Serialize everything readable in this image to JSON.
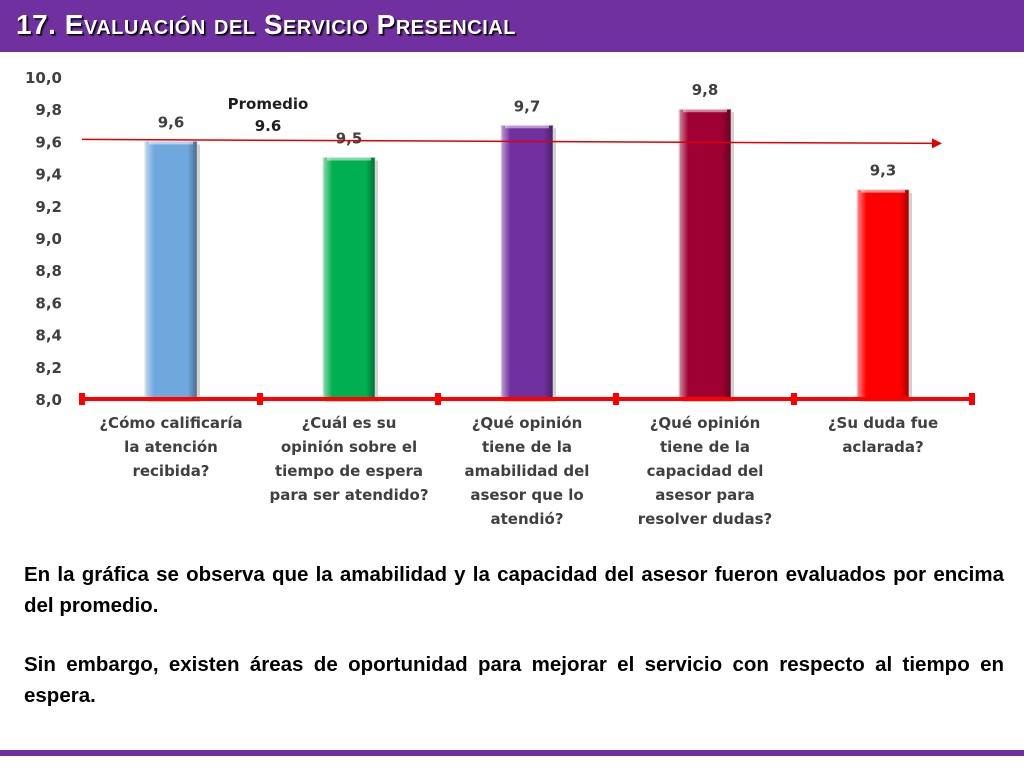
{
  "header": {
    "title": "17. Evaluación del Servicio Presencial"
  },
  "chart_data": {
    "type": "bar",
    "categories": [
      [
        "¿Cómo calificaría",
        "la atención",
        "recibida?"
      ],
      [
        "¿Cuál es su",
        "opinión sobre el",
        "tiempo de espera",
        "para ser atendido?"
      ],
      [
        "¿Qué opinión",
        "tiene de la",
        "amabilidad del",
        "asesor que lo",
        "atendió?"
      ],
      [
        "¿Qué opinión",
        "tiene de la",
        "capacidad del",
        "asesor para",
        "resolver dudas?"
      ],
      [
        "¿Su duda fue",
        "aclarada?"
      ]
    ],
    "values": [
      9.6,
      9.5,
      9.7,
      9.8,
      9.3
    ],
    "value_labels": [
      "9,6",
      "9,5",
      "9,7",
      "9,8",
      "9,3"
    ],
    "colors": [
      "#6fa8dc",
      "#00b050",
      "#7030a0",
      "#9e0033",
      "#ff0000"
    ],
    "ylim": [
      8.0,
      10.0
    ],
    "y_ticks": [
      {
        "value": 8.0,
        "label": "8,0"
      },
      {
        "value": 8.2,
        "label": "8,2"
      },
      {
        "value": 8.4,
        "label": "8,4"
      },
      {
        "value": 8.6,
        "label": "8,6"
      },
      {
        "value": 8.8,
        "label": "8,8"
      },
      {
        "value": 9.0,
        "label": "9,0"
      },
      {
        "value": 9.2,
        "label": "9,2"
      },
      {
        "value": 9.4,
        "label": "9,4"
      },
      {
        "value": 9.6,
        "label": "9,6"
      },
      {
        "value": 9.8,
        "label": "9,8"
      },
      {
        "value": 10.0,
        "label": "10,0"
      }
    ],
    "average": {
      "label": [
        "Promedio",
        "9.6"
      ],
      "value": 9.6
    },
    "grid": false,
    "axis_color": "#ff0000",
    "average_line_color": "#e00000"
  },
  "body": {
    "paragraph_1": "En la gráfica se observa que la amabilidad y la capacidad del asesor fueron evaluados por encima del promedio.",
    "paragraph_2": "Sin embargo, existen áreas de oportunidad para mejorar el servicio con respecto al tiempo en espera."
  }
}
